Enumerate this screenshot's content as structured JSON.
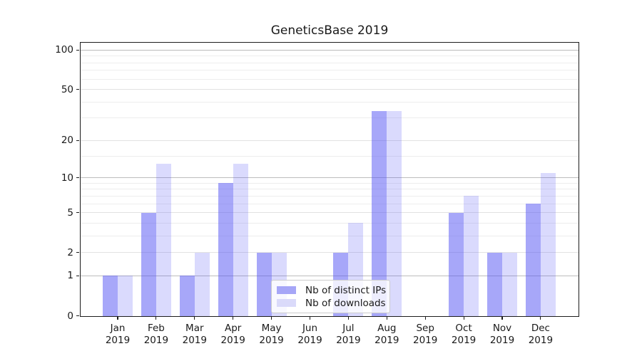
{
  "chart_data": {
    "type": "bar",
    "title": "GeneticsBase 2019",
    "categories": [
      "Jan",
      "Feb",
      "Mar",
      "Apr",
      "May",
      "Jun",
      "Jul",
      "Aug",
      "Sep",
      "Oct",
      "Nov",
      "Dec"
    ],
    "year_label": "2019",
    "series": [
      {
        "name": "Nb of distinct IPs",
        "values": [
          1,
          5,
          1,
          9,
          2,
          0,
          2,
          34,
          0,
          5,
          2,
          6
        ],
        "color": "#a6a6f7",
        "fill": "rgba(88,88,244,0.53)"
      },
      {
        "name": "Nb of downloads",
        "values": [
          1,
          13,
          2,
          13,
          2,
          0,
          4,
          34,
          0,
          7,
          2,
          11
        ],
        "color": "#dadafa",
        "fill": "rgba(88,88,244,0.22)"
      }
    ],
    "y_axis": {
      "scale": "log1p",
      "tick_values": [
        0,
        1,
        2,
        5,
        10,
        20,
        50,
        100
      ],
      "tick_labels": [
        "0",
        "1",
        "2",
        "5",
        "10",
        "20",
        "50",
        "100"
      ],
      "decade_values": [
        1,
        10,
        100
      ],
      "minor_values": [
        3,
        4,
        6,
        7,
        8,
        9,
        15,
        30,
        40,
        60,
        70,
        80,
        90
      ],
      "ymax": 113
    },
    "legend": {
      "position": "lower-center-inside"
    },
    "grid": true
  },
  "colors": {
    "grid_decade": "#bcbcbc",
    "grid_major": "#e2e2e2",
    "grid_minor": "#ededed",
    "spine": "#1c1c1c",
    "text": "#1a1a1a",
    "legend_border": "#cccccc"
  }
}
